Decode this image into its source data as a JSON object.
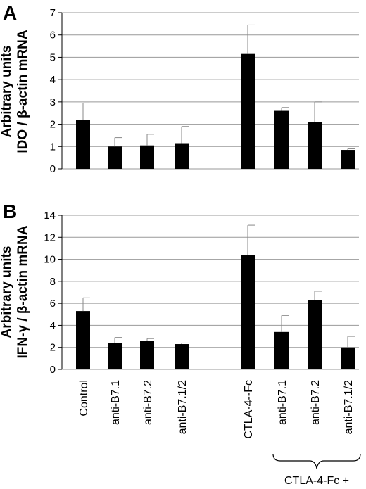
{
  "figure": {
    "categories": [
      "Control",
      "anti-B7.1",
      "anti-B7.2",
      "anti-B7.1/2",
      "CTLA-4--Fc",
      "anti-B7.1",
      "anti-B7.2",
      "anti-B7.1/2"
    ],
    "group_bracket_label": "CTLA-4-Fc +",
    "bar_color": "#000000",
    "error_bar_color": "#888888"
  },
  "chart_data": [
    {
      "type": "bar",
      "panel": "A",
      "ylabel_line1": "Arbitrary units",
      "ylabel_line2": "IDO / β-actin mRNA",
      "ylim": [
        0,
        7
      ],
      "yticks": [
        0,
        1,
        2,
        3,
        4,
        5,
        6,
        7
      ],
      "grid": true,
      "values": [
        2.2,
        1.0,
        1.05,
        1.15,
        5.15,
        2.6,
        2.1,
        0.85
      ],
      "errors": [
        0.75,
        0.4,
        0.5,
        0.75,
        1.3,
        0.15,
        0.9,
        0.05
      ]
    },
    {
      "type": "bar",
      "panel": "B",
      "ylabel_line1": "Arbitrary units",
      "ylabel_line2": "IFN-γ / β-actin mRNA",
      "ylim": [
        0,
        14
      ],
      "yticks": [
        0,
        2,
        4,
        6,
        8,
        10,
        12,
        14
      ],
      "grid": true,
      "values": [
        5.3,
        2.4,
        2.6,
        2.3,
        10.4,
        3.4,
        6.3,
        2.0
      ],
      "errors": [
        1.2,
        0.5,
        0.2,
        0.1,
        2.7,
        1.5,
        0.8,
        1.0
      ]
    }
  ]
}
